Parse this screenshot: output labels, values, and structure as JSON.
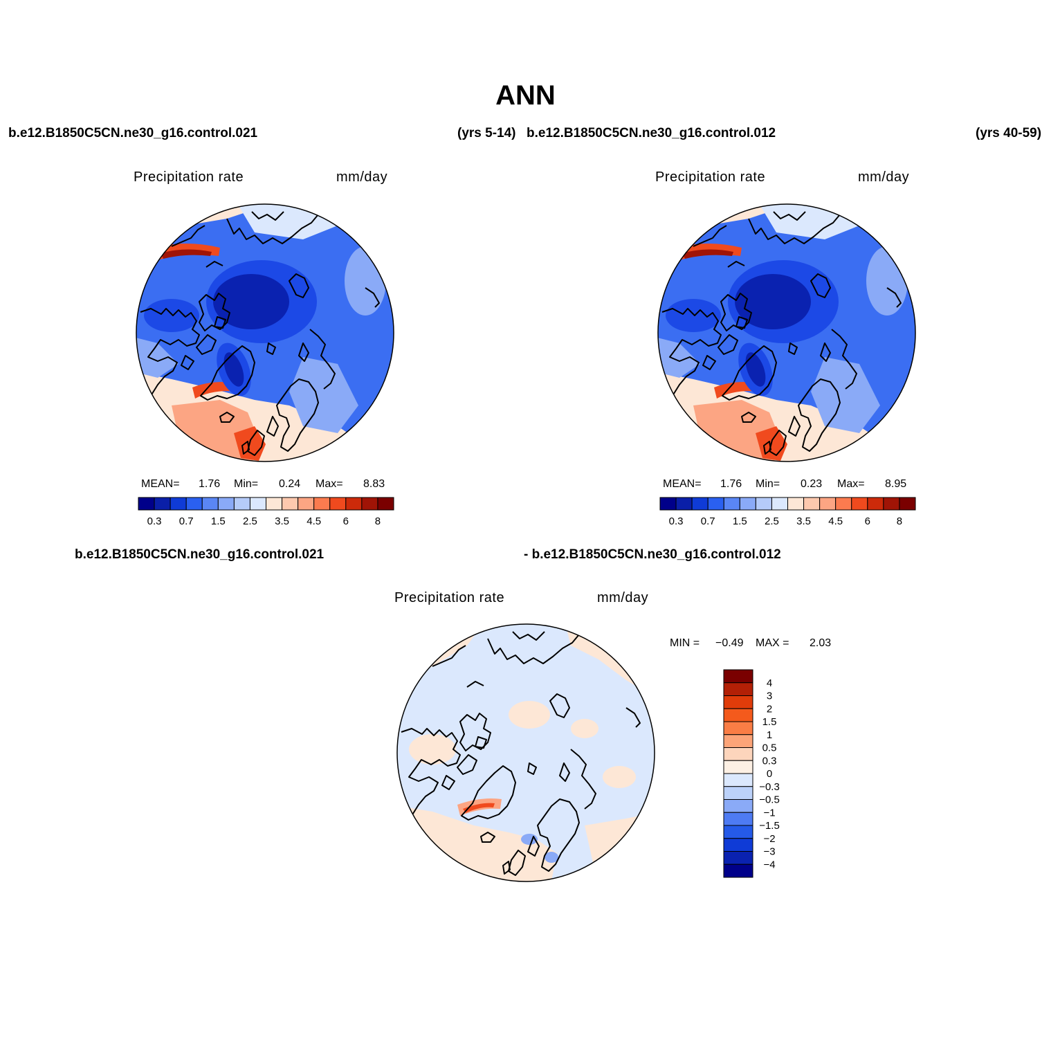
{
  "figure_title": "ANN",
  "case_top_left": "b.e12.B1850C5CN.ne30_g16.control.021",
  "years_top_left": "(yrs 5-14)",
  "case_top_right": "b.e12.B1850C5CN.ne30_g16.control.012",
  "years_top_right": "(yrs 40-59)",
  "diff_case_a": "b.e12.B1850C5CN.ne30_g16.control.021",
  "diff_case_b": "- b.e12.B1850C5CN.ne30_g16.control.012",
  "panels": [
    {
      "variable": "Precipitation rate",
      "units": "mm/day",
      "mean_label": "MEAN=",
      "mean": "1.76",
      "min_label": "Min=",
      "min": "0.24",
      "max_label": "Max=",
      "max": "8.83"
    },
    {
      "variable": "Precipitation rate",
      "units": "mm/day",
      "mean_label": "MEAN=",
      "mean": "1.76",
      "min_label": "Min=",
      "min": "0.23",
      "max_label": "Max=",
      "max": "8.95"
    },
    {
      "variable": "Precipitation rate",
      "units": "mm/day",
      "min_label": "MIN =",
      "min": "−0.49",
      "max_label": "MAX =",
      "max": "2.03"
    }
  ],
  "colorbar_main": {
    "colors": [
      "#00008a",
      "#0a1fa8",
      "#0f3bd6",
      "#2a60f0",
      "#5a86f5",
      "#8aaaf7",
      "#b5cbf9",
      "#dbe8fd",
      "#fde7d6",
      "#fdc9ae",
      "#fca583",
      "#fb7b4f",
      "#f04a1e",
      "#cc2a0a",
      "#a01406",
      "#7a0000"
    ],
    "tick_labels": [
      "0.3",
      "0.7",
      "1.5",
      "2.5",
      "3.5",
      "4.5",
      "6",
      "8"
    ]
  },
  "colorbar_diff": {
    "colors_top_to_bottom": [
      "#7a0000",
      "#b32006",
      "#e03c0a",
      "#f45a1c",
      "#fa7d45",
      "#fca478",
      "#fdd5bc",
      "#fdf0e4",
      "#dbe8fd",
      "#bcd2fa",
      "#8aaaf7",
      "#4e7bf3",
      "#255ae8",
      "#0f3bd6",
      "#0a22b0",
      "#00008a"
    ],
    "tick_labels": [
      "4",
      "3",
      "2",
      "1.5",
      "1",
      "0.5",
      "0.3",
      "0",
      "−0.3",
      "−0.5",
      "−1",
      "−1.5",
      "−2",
      "−3",
      "−4"
    ]
  },
  "map_colors": {
    "deep_blue": "#0a22b0",
    "blue": "#1c49e6",
    "mid_blue": "#3b6ef2",
    "light_blue": "#8aaaf7",
    "pale_blue": "#dbe8fd",
    "peach": "#fde7d6",
    "salmon": "#fca583",
    "orange_red": "#f04a1e",
    "dark_red": "#a01406"
  }
}
